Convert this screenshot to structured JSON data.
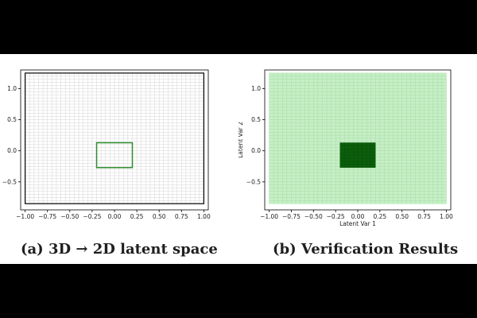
{
  "figure": {
    "caption_a": "(a) 3D → 2D latent space",
    "caption_b": "(b) Verification Results"
  },
  "chart_data": [
    {
      "type": "heatmap",
      "panel": "a",
      "title": "",
      "xlabel": "",
      "ylabel": "",
      "xlim": [
        -1.05,
        1.05
      ],
      "ylim": [
        -0.95,
        1.3
      ],
      "grid_extent": {
        "x": [
          -1.0,
          1.0
        ],
        "y": [
          -0.85,
          1.25
        ]
      },
      "grid_step": 0.05,
      "grid_color": "#d4d4d4",
      "frame_color": "#000000",
      "region": {
        "x": [
          -0.2,
          0.2
        ],
        "y": [
          -0.27,
          0.13
        ],
        "color": "#2e8b2e",
        "fill": false
      },
      "xticks": [
        "−1.00",
        "−0.75",
        "−0.50",
        "−0.25",
        "0.00",
        "0.25",
        "0.50",
        "0.75",
        "1.00"
      ],
      "yticks": [
        "1.0",
        "0.5",
        "0.0",
        "−0.5"
      ]
    },
    {
      "type": "heatmap",
      "panel": "b",
      "title": "",
      "xlabel": "Latent Var 1",
      "ylabel": "Latent Var 2",
      "xlim": [
        -1.05,
        1.05
      ],
      "ylim": [
        -0.95,
        1.3
      ],
      "grid_extent": {
        "x": [
          -1.0,
          1.0
        ],
        "y": [
          -0.85,
          1.25
        ]
      },
      "grid_step": 0.05,
      "background_color": "#c6efc6",
      "grid_color": "#a8dca8",
      "region": {
        "x": [
          -0.2,
          0.2
        ],
        "y": [
          -0.27,
          0.13
        ],
        "color": "#0b5e0b",
        "fill": true
      },
      "xticks": [
        "−1.00",
        "−0.75",
        "−0.50",
        "−0.25",
        "0.00",
        "0.25",
        "0.50",
        "0.75",
        "1.00"
      ],
      "yticks": [
        "1.0",
        "0.5",
        "0.0",
        "−0.5"
      ]
    }
  ]
}
